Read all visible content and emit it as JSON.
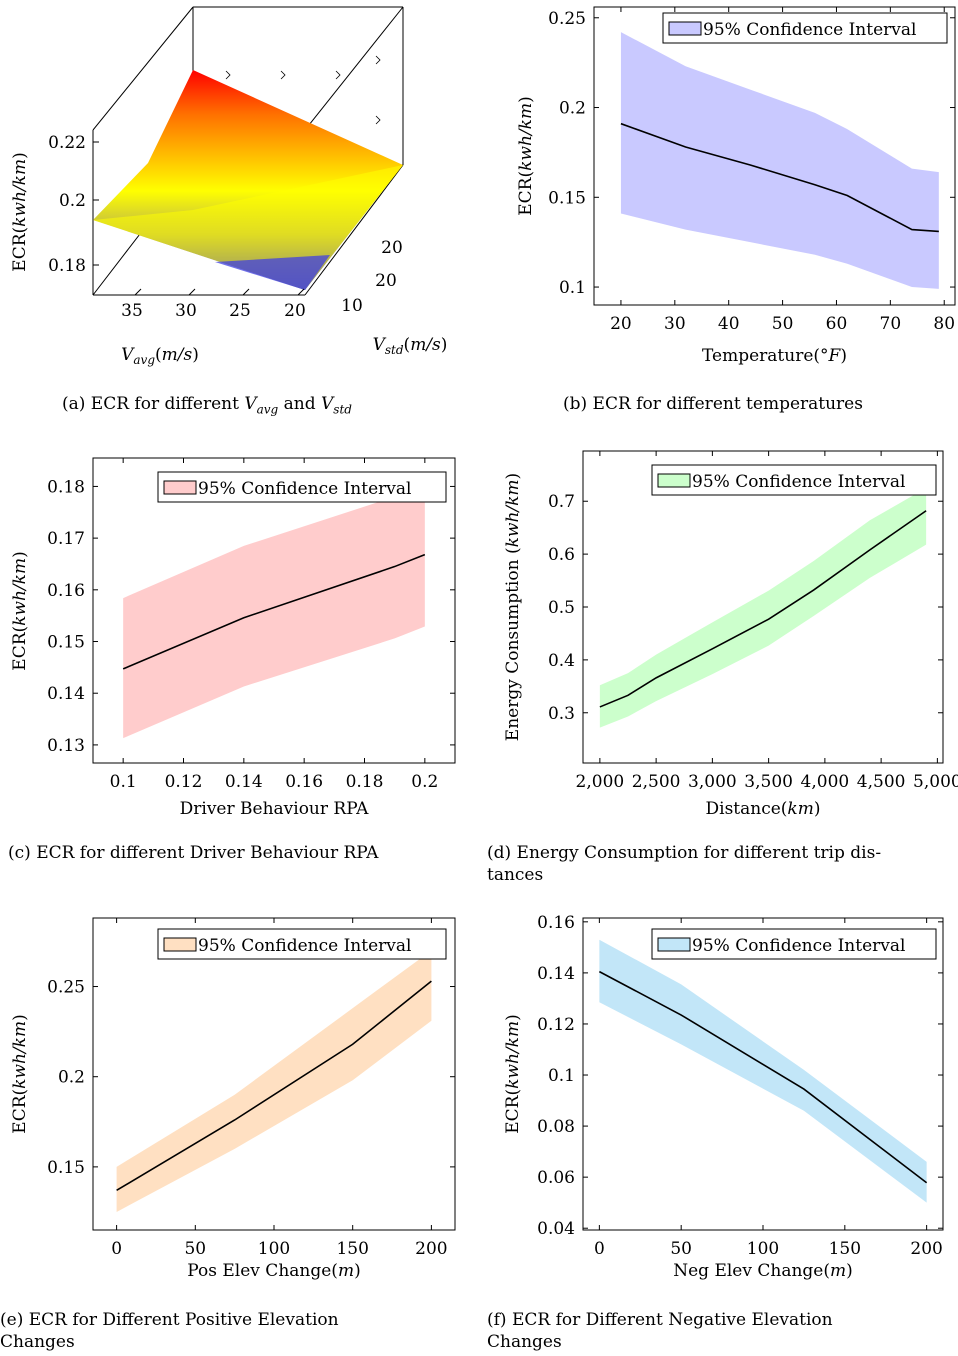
{
  "chart_data": [
    {
      "id": "a",
      "type": "surface3d",
      "caption": "(a)  ECR for different V_avg and V_std",
      "caption_parts": {
        "prefix": "(a)  ECR for different ",
        "v1": "V",
        "s1": "avg",
        "mid": " and ",
        "v2": "V",
        "s2": "std"
      },
      "ylabel": "ECR(kwh/km)",
      "xlabel": "V_avg(m/s)",
      "zlabel": "V_std(m/s)",
      "z_ticks": [
        "0.18",
        "0.2",
        "0.22"
      ],
      "vavg_ticks": [
        "35",
        "30",
        "25",
        "20"
      ],
      "vstd_ticks": [
        "10",
        "20"
      ],
      "vstd_ticks_back": [
        "20"
      ],
      "colormap": [
        "#0000ff",
        "#ffff00",
        "#ff0000"
      ]
    },
    {
      "id": "b",
      "type": "line",
      "caption": "(b)  ECR for different temperatures",
      "xlabel": "Temperature(°F)",
      "ylabel": "ECR(kwh/km)",
      "legend": "95% Confidence Interval",
      "legend_placement": "top-right",
      "fill": "#c9c9ff",
      "x": [
        20,
        32,
        44,
        56,
        62,
        74,
        79
      ],
      "y": [
        0.191,
        0.178,
        0.168,
        0.157,
        0.151,
        0.132,
        0.131
      ],
      "lower": [
        0.141,
        0.132,
        0.125,
        0.118,
        0.113,
        0.1,
        0.099
      ],
      "upper": [
        0.242,
        0.223,
        0.21,
        0.197,
        0.188,
        0.166,
        0.164
      ],
      "xlim": [
        15,
        82
      ],
      "ylim": [
        0.09,
        0.256
      ],
      "xticks": [
        20,
        30,
        40,
        50,
        60,
        70,
        80
      ],
      "yticks": [
        0.1,
        0.15,
        0.2,
        0.25
      ],
      "yticklabels": [
        "0.1",
        "0.15",
        "0.2",
        "0.25"
      ]
    },
    {
      "id": "c",
      "type": "line",
      "caption": "(c)  ECR for different Driver Behaviour RPA",
      "xlabel": "Driver Behaviour RPA",
      "ylabel": "ECR(kwh/km)",
      "legend": "95% Confidence Interval",
      "legend_placement": "top-right",
      "fill": "#ffcccc",
      "x": [
        0.1,
        0.14,
        0.19,
        0.2
      ],
      "y": [
        0.1447,
        0.1546,
        0.1645,
        0.1668
      ],
      "lower": [
        0.1313,
        0.1413,
        0.1506,
        0.1529
      ],
      "upper": [
        0.1584,
        0.1685,
        0.178,
        0.181
      ],
      "xlim": [
        0.09,
        0.21
      ],
      "ylim": [
        0.1265,
        0.1855
      ],
      "xticks": [
        0.1,
        0.12,
        0.14,
        0.16,
        0.18,
        0.2
      ],
      "xticklabels": [
        "0.1",
        "0.12",
        "0.14",
        "0.16",
        "0.18",
        "0.2"
      ],
      "yticks": [
        0.13,
        0.14,
        0.15,
        0.16,
        0.17,
        0.18
      ],
      "yticklabels": [
        "0.13",
        "0.14",
        "0.15",
        "0.16",
        "0.17",
        "0.18"
      ]
    },
    {
      "id": "d",
      "type": "line",
      "caption": "(d)  Energy Consumption for different trip dis-",
      "caption_line2": "tances",
      "xlabel": "Distance(km)",
      "ylabel": "Energy Consumption (kwh/km)",
      "legend": "95% Confidence Interval",
      "legend_placement": "top-right",
      "fill": "#ccffcc",
      "x": [
        2000,
        2250,
        2500,
        3000,
        3500,
        3900,
        4400,
        4900
      ],
      "y": [
        0.311,
        0.333,
        0.366,
        0.421,
        0.477,
        0.532,
        0.608,
        0.682
      ],
      "lower": [
        0.272,
        0.293,
        0.322,
        0.373,
        0.427,
        0.483,
        0.555,
        0.618
      ],
      "upper": [
        0.352,
        0.375,
        0.41,
        0.471,
        0.531,
        0.587,
        0.664,
        0.725
      ],
      "xlim": [
        1850,
        5050
      ],
      "ylim": [
        0.205,
        0.795
      ],
      "xticks": [
        2000,
        2500,
        3000,
        3500,
        4000,
        4500,
        5000
      ],
      "xticklabels": [
        "2,000",
        "2,500",
        "3,000",
        "3,500",
        "4,000",
        "4,500",
        "5,000"
      ],
      "yticks": [
        0.3,
        0.4,
        0.5,
        0.6,
        0.7
      ],
      "yticklabels": [
        "0.3",
        "0.4",
        "0.5",
        "0.6",
        "0.7"
      ]
    },
    {
      "id": "e",
      "type": "line",
      "caption": "(e)  ECR for Different Positive Elevation",
      "caption_line2": "Changes",
      "xlabel": "Pos Elev Change(m)",
      "ylabel": "ECR(kwh/km)",
      "legend": "95% Confidence Interval",
      "legend_placement": "top-right",
      "fill": "#ffe0c2",
      "x": [
        0,
        75,
        150,
        200
      ],
      "y": [
        0.137,
        0.176,
        0.218,
        0.253
      ],
      "lower": [
        0.125,
        0.16,
        0.198,
        0.231
      ],
      "upper": [
        0.15,
        0.19,
        0.238,
        0.27
      ],
      "xlim": [
        -15,
        215
      ],
      "ylim": [
        0.115,
        0.288
      ],
      "xticks": [
        0,
        50,
        100,
        150,
        200
      ],
      "yticks": [
        0.15,
        0.2,
        0.25
      ],
      "yticklabels": [
        "0.15",
        "0.2",
        "0.25"
      ]
    },
    {
      "id": "f",
      "type": "line",
      "caption": "(f)  ECR for Different Negative Elevation",
      "caption_line2": "Changes",
      "xlabel": "Neg Elev Change(m)",
      "ylabel": "ECR(kwh/km)",
      "legend": "95% Confidence Interval",
      "legend_placement": "top-right",
      "fill": "#c2e6f8",
      "x": [
        0,
        50,
        125,
        200
      ],
      "y": [
        0.1405,
        0.1235,
        0.0945,
        0.0578
      ],
      "lower": [
        0.1285,
        0.112,
        0.086,
        0.05
      ],
      "upper": [
        0.153,
        0.1355,
        0.102,
        0.066
      ],
      "xlim": [
        -10,
        210
      ],
      "ylim": [
        0.0393,
        0.1615
      ],
      "xticks": [
        0,
        50,
        100,
        150,
        200
      ],
      "yticks": [
        0.04,
        0.06,
        0.08,
        0.1,
        0.12,
        0.14,
        0.16
      ],
      "yticklabels": [
        "0.04",
        "0.06",
        "0.08",
        "0.1",
        "0.12",
        "0.14",
        "0.16"
      ]
    }
  ]
}
